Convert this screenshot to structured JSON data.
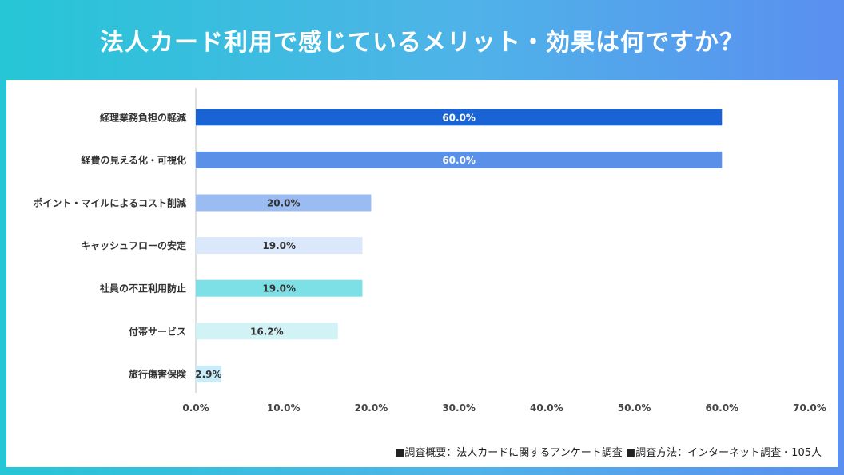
{
  "header": {
    "title": "法人カード利用で感じているメリット・効果は何ですか？"
  },
  "footnote": "■調査概要：法人カードに関するアンケート調査 ■調査方法：インターネット調査・105人",
  "chart_data": {
    "type": "bar",
    "orientation": "horizontal",
    "title": "法人カード利用で感じているメリット・効果は何ですか？",
    "categories": [
      "経理業務負担の軽減",
      "経費の見える化・可視化",
      "ポイント・マイルによるコスト削減",
      "キャッシュフローの安定",
      "社員の不正利用防止",
      "付帯サービス",
      "旅行傷害保険"
    ],
    "values": [
      60.0,
      60.0,
      20.0,
      19.0,
      19.0,
      16.2,
      2.9
    ],
    "value_labels": [
      "60.0%",
      "60.0%",
      "20.0%",
      "19.0%",
      "19.0%",
      "16.2%",
      "2.9%"
    ],
    "bar_colors": [
      "#1a63d4",
      "#5a90e8",
      "#9bbcf2",
      "#dbe7fb",
      "#7de0e6",
      "#d2f3f6",
      "#c9ecfa"
    ],
    "label_colors": [
      "#ffffff",
      "#ffffff",
      "#333333",
      "#333333",
      "#333333",
      "#333333",
      "#333333"
    ],
    "xlim": [
      0,
      70
    ],
    "xticks": [
      0,
      10,
      20,
      30,
      40,
      50,
      60,
      70
    ],
    "xtick_labels": [
      "0.0%",
      "10.0%",
      "20.0%",
      "30.0%",
      "40.0%",
      "50.0%",
      "60.0%",
      "70.0%"
    ],
    "xlabel": "",
    "ylabel": "",
    "grid": false
  }
}
